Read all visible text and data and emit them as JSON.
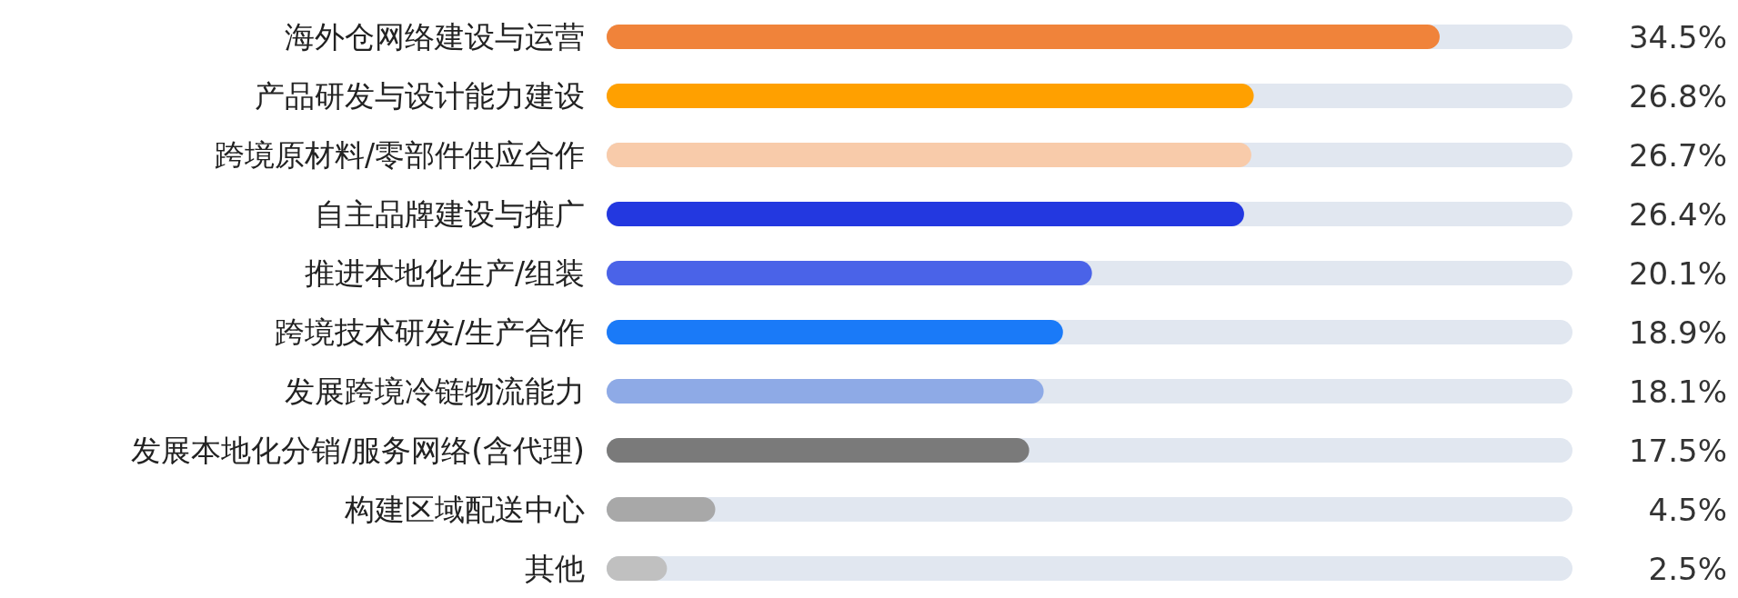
{
  "chart_data": {
    "type": "bar",
    "orientation": "horizontal",
    "categories": [
      "海外仓网络建设与运营",
      "产品研发与设计能力建设",
      "跨境原材料/零部件供应合作",
      "自主品牌建设与推广",
      "推进本地化生产/组装",
      "跨境技术研发/生产合作",
      "发展跨境冷链物流能力",
      "发展本地化分销/服务网络(含代理)",
      "构建区域配送中心",
      "其他"
    ],
    "values": [
      34.5,
      26.8,
      26.7,
      26.4,
      20.1,
      18.9,
      18.1,
      17.5,
      4.5,
      2.5
    ],
    "value_labels": [
      "34.5%",
      "26.8%",
      "26.7%",
      "26.4%",
      "20.1%",
      "18.9%",
      "18.1%",
      "17.5%",
      "4.5%",
      "2.5%"
    ],
    "colors": [
      "#f0833a",
      "#ffa000",
      "#f8cbaa",
      "#2338e0",
      "#4a63e8",
      "#1a7af8",
      "#8eaae6",
      "#7a7a7a",
      "#a8a8a8",
      "#c0c0c0"
    ],
    "xlim": [
      0,
      40
    ],
    "grid": false
  }
}
